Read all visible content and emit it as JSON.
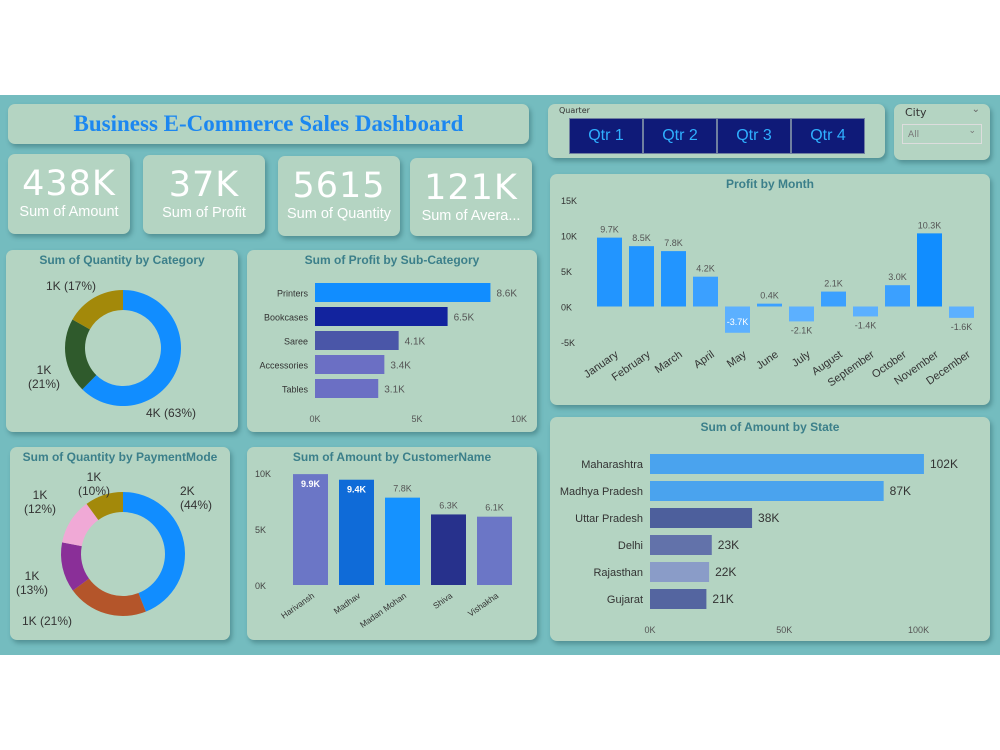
{
  "title": "Business E-Commerce Sales Dashboard",
  "kpis": [
    {
      "value": "438K",
      "label": "Sum of Amount"
    },
    {
      "value": "37K",
      "label": "Sum of Profit"
    },
    {
      "value": "5615",
      "label": "Sum of Quantity"
    },
    {
      "value": "121K",
      "label": "Sum of Avera..."
    }
  ],
  "quarter_slicer": {
    "label": "Quarter",
    "options": [
      "Qtr 1",
      "Qtr 2",
      "Qtr 3",
      "Qtr 4"
    ]
  },
  "city_slicer": {
    "label": "City",
    "value": "All"
  },
  "colors": {
    "background": "#74bcbf",
    "panel": "#b4d4c2",
    "title": "#1c87f0",
    "panel_title": "#3b7f8a"
  },
  "chart_data": [
    {
      "id": "qty_category",
      "type": "pie",
      "title": "Sum of Quantity by Category",
      "donut": true,
      "values": [
        63,
        21,
        17
      ],
      "labels": [
        "4K (63%)",
        "1K (21%)",
        "1K (17%)"
      ],
      "colors": [
        "#118dff",
        "#2f5a2c",
        "#a3890a"
      ]
    },
    {
      "id": "profit_subcat",
      "type": "bar",
      "orientation": "horizontal",
      "title": "Sum of Profit by Sub-Category",
      "categories": [
        "Printers",
        "Bookcases",
        "Saree",
        "Accessories",
        "Tables"
      ],
      "values": [
        8.6,
        6.5,
        4.1,
        3.4,
        3.1
      ],
      "data_labels": [
        "8.6K",
        "6.5K",
        "4.1K",
        "3.4K",
        "3.1K"
      ],
      "xlim": [
        0,
        10
      ],
      "xticks": [
        "0K",
        "5K",
        "10K"
      ],
      "colors": [
        "#118dff",
        "#12239e",
        "#4a56a8",
        "#6b6fc4",
        "#6b6fc4"
      ]
    },
    {
      "id": "qty_payment",
      "type": "pie",
      "title": "Sum of Quantity by PaymentMode",
      "donut": true,
      "values": [
        44,
        21,
        13,
        12,
        10
      ],
      "labels": [
        "2K (44%)",
        "1K (21%)",
        "1K (13%)",
        "1K (12%)",
        "1K (10%)"
      ],
      "colors": [
        "#118dff",
        "#b4552a",
        "#8a2f98",
        "#f0a9d6",
        "#a3890a"
      ]
    },
    {
      "id": "amount_customer",
      "type": "bar",
      "title": "Sum of Amount by CustomerName",
      "categories": [
        "Harivansh",
        "Madhav",
        "Madan Mohan",
        "Shiva",
        "Vishakha"
      ],
      "values": [
        9.9,
        9.4,
        7.8,
        6.3,
        6.1
      ],
      "data_labels": [
        "9.9K",
        "9.4K",
        "7.8K",
        "6.3K",
        "6.1K"
      ],
      "ylim": [
        0,
        10
      ],
      "yticks": [
        "0K",
        "5K",
        "10K"
      ],
      "colors": [
        "#6b76c6",
        "#0f6bd8",
        "#1592ff",
        "#27318c",
        "#6b76c6"
      ]
    },
    {
      "id": "profit_month",
      "type": "bar",
      "title": "Profit by Month",
      "categories": [
        "January",
        "February",
        "March",
        "April",
        "May",
        "June",
        "July",
        "August",
        "September",
        "October",
        "November",
        "December"
      ],
      "values": [
        9.7,
        8.5,
        7.8,
        4.2,
        -3.7,
        0.4,
        -2.1,
        2.1,
        -1.4,
        3.0,
        10.3,
        -1.6
      ],
      "data_labels": [
        "9.7K",
        "8.5K",
        "7.8K",
        "4.2K",
        "-3.7K",
        "0.4K",
        "-2.1K",
        "2.1K",
        "-1.4K",
        "3.0K",
        "10.3K",
        "-1.6K"
      ],
      "ylim": [
        -5,
        15
      ],
      "yticks": [
        "-5K",
        "0K",
        "5K",
        "10K",
        "15K"
      ]
    },
    {
      "id": "amount_state",
      "type": "bar",
      "orientation": "horizontal",
      "title": "Sum of Amount by State",
      "categories": [
        "Maharashtra",
        "Madhya Pradesh",
        "Uttar Pradesh",
        "Delhi",
        "Rajasthan",
        "Gujarat"
      ],
      "values": [
        102,
        87,
        38,
        23,
        22,
        21
      ],
      "data_labels": [
        "102K",
        "87K",
        "38K",
        "23K",
        "22K",
        "21K"
      ],
      "xlim": [
        0,
        105
      ],
      "xticks": [
        "0K",
        "50K",
        "100K"
      ],
      "colors": [
        "#4aa3ee",
        "#4aa3ee",
        "#4d5f9c",
        "#6272aa",
        "#8a9cc8",
        "#5465a0"
      ]
    }
  ]
}
